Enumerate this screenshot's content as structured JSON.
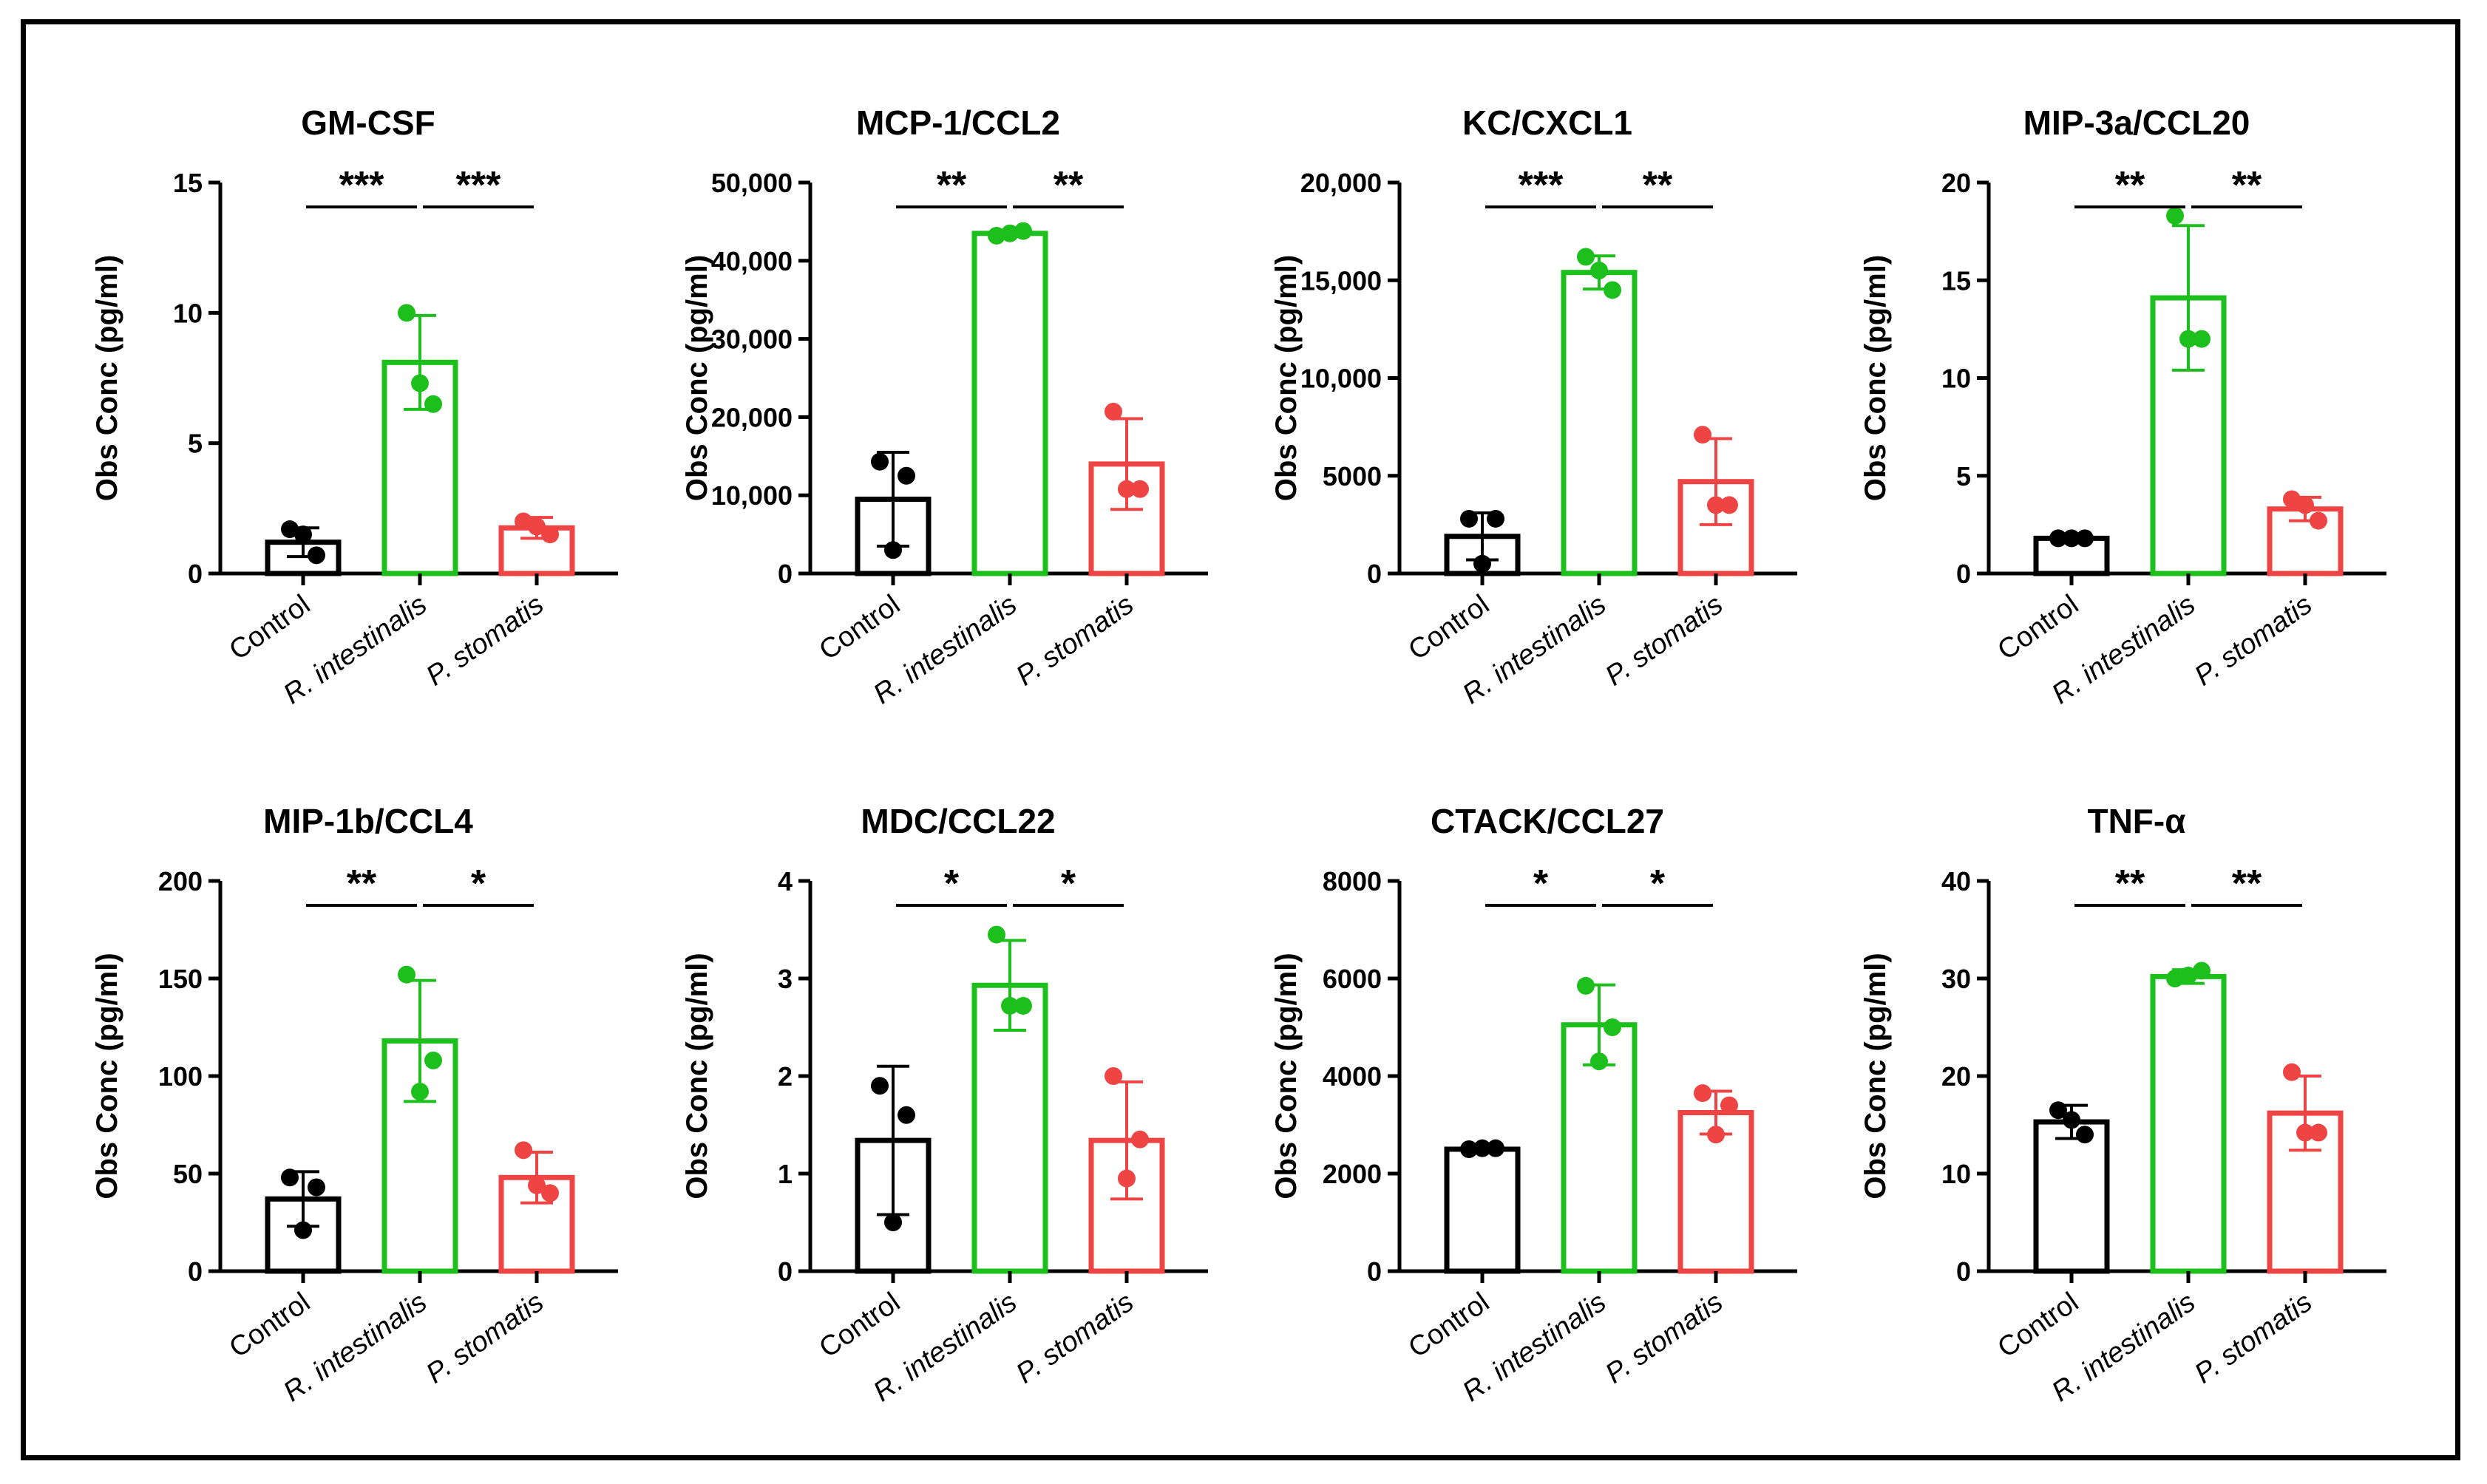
{
  "figure": {
    "background": "#ffffff",
    "frame_color": "#000000"
  },
  "colors": {
    "control": "#000000",
    "r_intestinalis": "#1dbf1d",
    "p_stomatis": "#ee4444"
  },
  "chart_data": [
    {
      "type": "bar",
      "title": "GM-CSF",
      "ylabel": "Obs Conc (pg/ml)",
      "ylim": [
        0,
        15
      ],
      "yticks": [
        0,
        5,
        10,
        15
      ],
      "ytick_labels": [
        "0",
        "5",
        "10",
        "15"
      ],
      "categories": [
        "Control",
        "R. intestinalis",
        "P. stomatis"
      ],
      "category_italic": [
        false,
        true,
        true
      ],
      "values": [
        1.2,
        8.1,
        1.75
      ],
      "errors": [
        0.55,
        1.8,
        0.4
      ],
      "points": [
        [
          1.7,
          0.7,
          1.5
        ],
        [
          10.0,
          6.5,
          7.3
        ],
        [
          2.0,
          1.5,
          1.8
        ]
      ],
      "significance": [
        {
          "from": 0,
          "to": 1,
          "label": "***"
        },
        {
          "from": 1,
          "to": 2,
          "label": "***"
        }
      ]
    },
    {
      "type": "bar",
      "title": "MCP-1/CCL2",
      "ylabel": "Obs Conc (pg/ml)",
      "ylim": [
        0,
        50000
      ],
      "yticks": [
        0,
        10000,
        20000,
        30000,
        40000,
        50000
      ],
      "ytick_labels": [
        "0",
        "10,000",
        "20,000",
        "30,000",
        "40,000",
        "50,000"
      ],
      "categories": [
        "Control",
        "R. intestinalis",
        "P. stomatis"
      ],
      "category_italic": [
        false,
        true,
        true
      ],
      "values": [
        9500,
        43500,
        14000
      ],
      "errors": [
        6000,
        400,
        5800
      ],
      "points": [
        [
          14300,
          12500,
          3000
        ],
        [
          43200,
          43800,
          43500
        ],
        [
          20700,
          10800,
          10800
        ]
      ],
      "significance": [
        {
          "from": 0,
          "to": 1,
          "label": "**"
        },
        {
          "from": 1,
          "to": 2,
          "label": "**"
        }
      ]
    },
    {
      "type": "bar",
      "title": "KC/CXCL1",
      "ylabel": "Obs Conc (pg/ml)",
      "ylim": [
        0,
        20000
      ],
      "yticks": [
        0,
        5000,
        10000,
        15000,
        20000
      ],
      "ytick_labels": [
        "0",
        "5000",
        "10,000",
        "15,000",
        "20,000"
      ],
      "categories": [
        "Control",
        "R. intestinalis",
        "P. stomatis"
      ],
      "category_italic": [
        false,
        true,
        true
      ],
      "values": [
        1900,
        15400,
        4700
      ],
      "errors": [
        1200,
        850,
        2200
      ],
      "points": [
        [
          2800,
          2800,
          500
        ],
        [
          16200,
          14500,
          15500
        ],
        [
          7100,
          3500,
          3500
        ]
      ],
      "significance": [
        {
          "from": 0,
          "to": 1,
          "label": "***"
        },
        {
          "from": 1,
          "to": 2,
          "label": "**"
        }
      ]
    },
    {
      "type": "bar",
      "title": "MIP-3a/CCL20",
      "ylabel": "Obs Conc (pg/ml)",
      "ylim": [
        0,
        20
      ],
      "yticks": [
        0,
        5,
        10,
        15,
        20
      ],
      "ytick_labels": [
        "0",
        "5",
        "10",
        "15",
        "20"
      ],
      "categories": [
        "Control",
        "R. intestinalis",
        "P. stomatis"
      ],
      "category_italic": [
        false,
        true,
        true
      ],
      "values": [
        1.8,
        14.1,
        3.3
      ],
      "errors": [
        0.05,
        3.7,
        0.6
      ],
      "points": [
        [
          1.8,
          1.8,
          1.8
        ],
        [
          18.3,
          12.0,
          12.0
        ],
        [
          3.8,
          2.7,
          3.5
        ]
      ],
      "significance": [
        {
          "from": 0,
          "to": 1,
          "label": "**"
        },
        {
          "from": 1,
          "to": 2,
          "label": "**"
        }
      ]
    },
    {
      "type": "bar",
      "title": "MIP-1b/CCL4",
      "ylabel": "Obs Conc (pg/ml)",
      "ylim": [
        0,
        200
      ],
      "yticks": [
        0,
        50,
        100,
        150,
        200
      ],
      "ytick_labels": [
        "0",
        "50",
        "100",
        "150",
        "200"
      ],
      "categories": [
        "Control",
        "R. intestinalis",
        "P. stomatis"
      ],
      "category_italic": [
        false,
        true,
        true
      ],
      "values": [
        37,
        118,
        48
      ],
      "errors": [
        14,
        31,
        13
      ],
      "points": [
        [
          48,
          43,
          21
        ],
        [
          152,
          108,
          92
        ],
        [
          62,
          40,
          44
        ]
      ],
      "significance": [
        {
          "from": 0,
          "to": 1,
          "label": "**"
        },
        {
          "from": 1,
          "to": 2,
          "label": "*"
        }
      ]
    },
    {
      "type": "bar",
      "title": "MDC/CCL22",
      "ylabel": "Obs Conc (pg/ml)",
      "ylim": [
        0,
        4
      ],
      "yticks": [
        0,
        1,
        2,
        3,
        4
      ],
      "ytick_labels": [
        "0",
        "1",
        "2",
        "3",
        "4"
      ],
      "categories": [
        "Control",
        "R. intestinalis",
        "P. stomatis"
      ],
      "category_italic": [
        false,
        true,
        true
      ],
      "values": [
        1.34,
        2.93,
        1.34
      ],
      "errors": [
        0.76,
        0.46,
        0.6
      ],
      "points": [
        [
          1.9,
          1.6,
          0.5
        ],
        [
          3.45,
          2.72,
          2.72
        ],
        [
          2.0,
          1.35,
          0.95
        ]
      ],
      "significance": [
        {
          "from": 0,
          "to": 1,
          "label": "*"
        },
        {
          "from": 1,
          "to": 2,
          "label": "*"
        }
      ]
    },
    {
      "type": "bar",
      "title": "CTACK/CCL27",
      "ylabel": "Obs Conc (pg/ml)",
      "ylim": [
        0,
        8000
      ],
      "yticks": [
        0,
        2000,
        4000,
        6000,
        8000
      ],
      "ytick_labels": [
        "0",
        "2000",
        "4000",
        "6000",
        "8000"
      ],
      "categories": [
        "Control",
        "R. intestinalis",
        "P. stomatis"
      ],
      "category_italic": [
        false,
        true,
        true
      ],
      "values": [
        2500,
        5050,
        3250
      ],
      "errors": [
        60,
        820,
        440
      ],
      "points": [
        [
          2500,
          2520,
          2520
        ],
        [
          5850,
          5000,
          4300
        ],
        [
          3650,
          3400,
          2800
        ]
      ],
      "significance": [
        {
          "from": 0,
          "to": 1,
          "label": "*"
        },
        {
          "from": 1,
          "to": 2,
          "label": "*"
        }
      ]
    },
    {
      "type": "bar",
      "title": "TNF-α",
      "ylabel": "Obs Conc (pg/ml)",
      "ylim": [
        0,
        40
      ],
      "yticks": [
        0,
        10,
        20,
        30,
        40
      ],
      "ytick_labels": [
        "0",
        "10",
        "20",
        "30",
        "40"
      ],
      "categories": [
        "Control",
        "R. intestinalis",
        "P. stomatis"
      ],
      "category_italic": [
        false,
        true,
        true
      ],
      "values": [
        15.3,
        30.2,
        16.2
      ],
      "errors": [
        1.7,
        0.7,
        3.8
      ],
      "points": [
        [
          16.5,
          14.0,
          15.5
        ],
        [
          30.0,
          30.8,
          30.3
        ],
        [
          20.4,
          14.2,
          14.2
        ]
      ],
      "significance": [
        {
          "from": 0,
          "to": 1,
          "label": "**"
        },
        {
          "from": 1,
          "to": 2,
          "label": "**"
        }
      ]
    }
  ]
}
